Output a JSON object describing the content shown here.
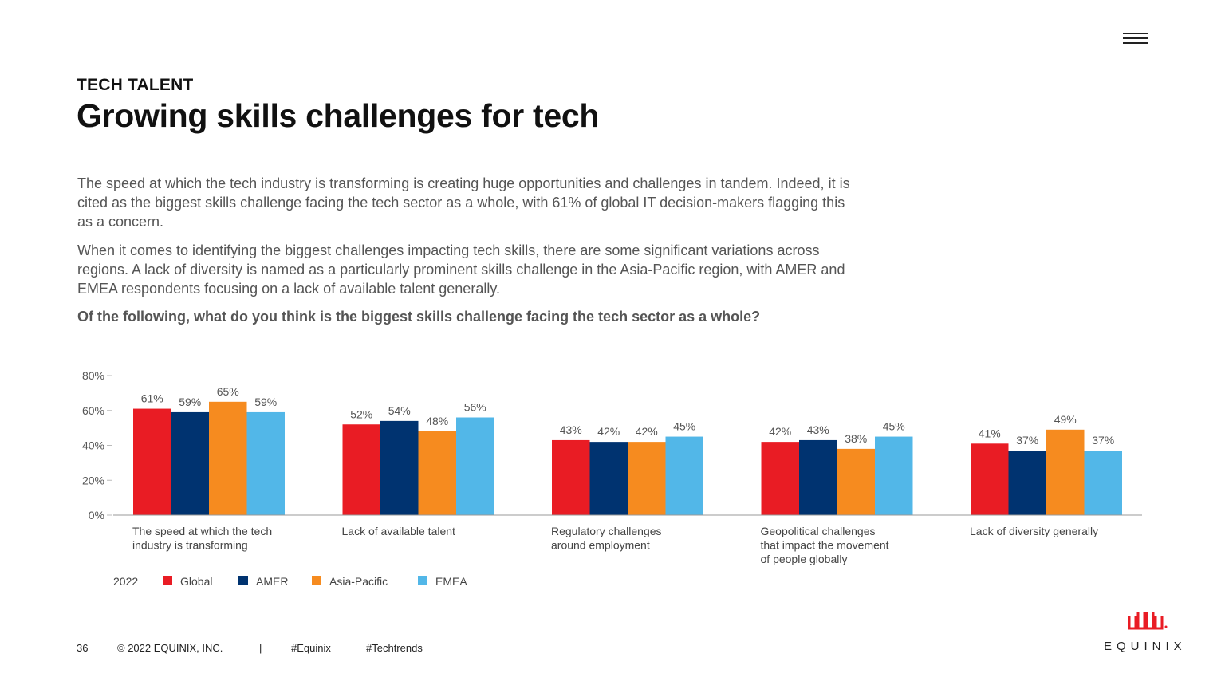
{
  "header": {
    "kicker": "TECH TALENT",
    "title": "Growing skills challenges for tech",
    "menu_icon": "hamburger-menu-icon"
  },
  "body": {
    "paragraph_1": "The speed at which the tech industry is transforming is creating huge opportunities and challenges in tandem. Indeed, it is cited as the biggest skills challenge facing the tech sector as a whole, with 61% of global IT decision-makers flagging this as a concern.",
    "paragraph_2": "When it comes to identifying the biggest challenges impacting tech skills, there are some significant variations across regions. A lack of diversity is named as a particularly prominent skills challenge in the Asia-Pacific region, with AMER and EMEA respondents focusing on a lack of available talent generally.",
    "question": "Of the following, what do you think is the biggest skills challenge facing the tech sector as a whole?"
  },
  "chart_data": {
    "type": "bar",
    "title": "Of the following, what do you think is the biggest skills challenge facing the tech sector as a whole?",
    "categories": [
      [
        "The speed at which the tech",
        "industry is transforming"
      ],
      [
        "Lack of available talent"
      ],
      [
        "Regulatory challenges",
        "around employment"
      ],
      [
        "Geopolitical challenges",
        "that impact the movement",
        "of people globally"
      ],
      [
        "Lack of diversity generally"
      ]
    ],
    "series": [
      {
        "name": "Global",
        "color": "#E91C24",
        "values": [
          61,
          52,
          43,
          42,
          41
        ]
      },
      {
        "name": "AMER",
        "color": "#003370",
        "values": [
          59,
          54,
          42,
          43,
          37
        ]
      },
      {
        "name": "Asia-Pacific",
        "color": "#F68B1F",
        "values": [
          65,
          48,
          42,
          38,
          49
        ]
      },
      {
        "name": "EMEA",
        "color": "#52B7E8",
        "values": [
          59,
          56,
          45,
          45,
          37
        ]
      }
    ],
    "yticks": [
      "0%",
      "20%",
      "40%",
      "60%",
      "80%"
    ],
    "ylim": [
      0,
      80
    ],
    "value_suffix": "%",
    "legend_title": "2022",
    "legend_position": "bottom-left"
  },
  "footer": {
    "page_number": "36",
    "copyright": "© 2022 EQUINIX, INC.",
    "separator": "|",
    "hashtag_1": "#Equinix",
    "hashtag_2": "#Techtrends"
  },
  "brand": {
    "name": "EQUINIX",
    "logo_icon": "equinix-logo-icon",
    "color": "#E91C24"
  }
}
